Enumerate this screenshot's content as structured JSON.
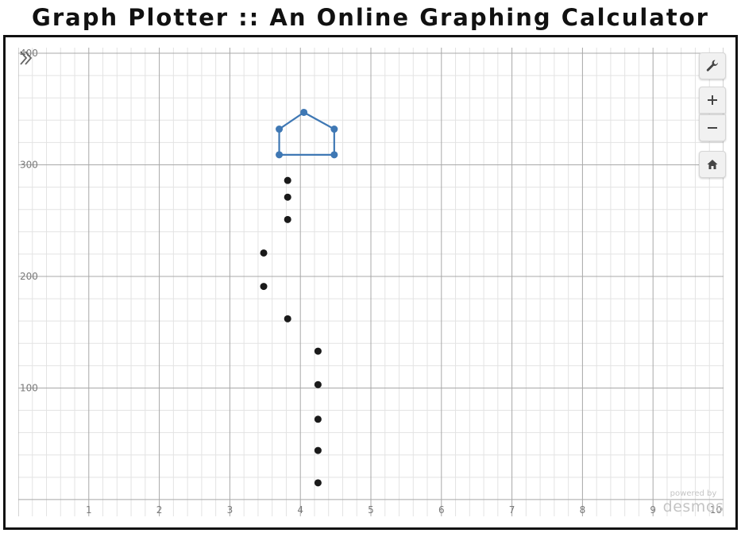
{
  "page": {
    "title": "Graph Plotter :: An Online Graphing Calculator"
  },
  "toolbar": {
    "expand_icon": "double-chevron-right-icon",
    "settings_icon": "wrench-icon",
    "zoom_in_label": "+",
    "zoom_out_label": "−",
    "home_icon": "home-icon"
  },
  "graph": {
    "x_ticks": [
      "1",
      "2",
      "3",
      "4",
      "5",
      "6",
      "7",
      "8",
      "9",
      "10"
    ],
    "y_ticks": [
      "100",
      "200",
      "300",
      "400"
    ],
    "x_range": [
      0,
      10
    ],
    "y_range": [
      -15,
      405
    ],
    "grid": true,
    "points_color": "#1a1a1a",
    "shape_color": "#3f78b4",
    "points": [
      {
        "x": 3.82,
        "y": 286
      },
      {
        "x": 3.82,
        "y": 271
      },
      {
        "x": 3.82,
        "y": 251
      },
      {
        "x": 3.48,
        "y": 221
      },
      {
        "x": 3.48,
        "y": 191
      },
      {
        "x": 3.82,
        "y": 162
      },
      {
        "x": 4.25,
        "y": 133
      },
      {
        "x": 4.25,
        "y": 103
      },
      {
        "x": 4.25,
        "y": 72
      },
      {
        "x": 4.25,
        "y": 44
      },
      {
        "x": 4.25,
        "y": 15
      }
    ],
    "shape": [
      {
        "x": 3.7,
        "y": 309
      },
      {
        "x": 4.48,
        "y": 309
      },
      {
        "x": 4.48,
        "y": 332
      },
      {
        "x": 4.05,
        "y": 347
      },
      {
        "x": 3.7,
        "y": 332
      }
    ]
  },
  "watermark": {
    "powered_by": "powered by",
    "brand": "desmos"
  }
}
